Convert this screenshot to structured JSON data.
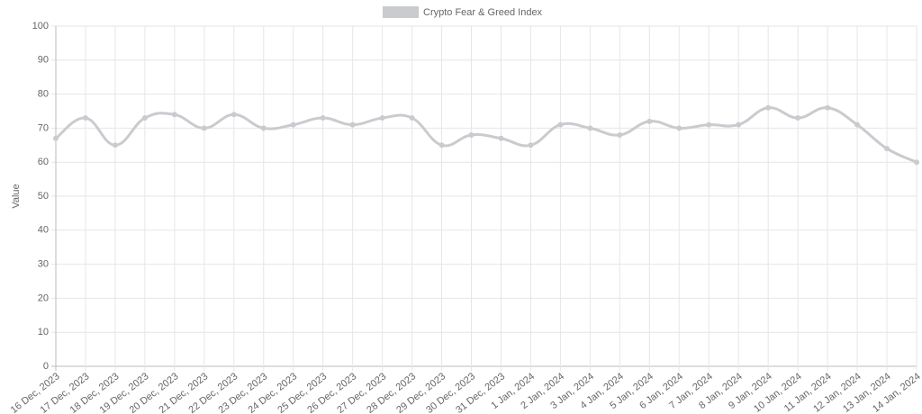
{
  "chart_data": {
    "type": "line",
    "ylabel": "Value",
    "categories": [
      "16 Dec, 2023",
      "17 Dec, 2023",
      "18 Dec, 2023",
      "19 Dec, 2023",
      "20 Dec, 2023",
      "21 Dec, 2023",
      "22 Dec, 2023",
      "23 Dec, 2023",
      "24 Dec, 2023",
      "25 Dec, 2023",
      "26 Dec, 2023",
      "27 Dec, 2023",
      "28 Dec, 2023",
      "29 Dec, 2023",
      "30 Dec, 2023",
      "31 Dec, 2023",
      "1 Jan, 2024",
      "2 Jan, 2024",
      "3 Jan, 2024",
      "4 Jan, 2024",
      "5 Jan, 2024",
      "6 Jan, 2024",
      "7 Jan, 2024",
      "8 Jan, 2024",
      "9 Jan, 2024",
      "10 Jan, 2024",
      "11 Jan, 2024",
      "12 Jan, 2024",
      "13 Jan, 2024",
      "14 Jan, 2024"
    ],
    "series": [
      {
        "name": "Crypto Fear & Greed Index",
        "color": "#c9cbcf",
        "values": [
          67,
          73,
          65,
          73,
          74,
          70,
          74,
          70,
          71,
          73,
          71,
          73,
          73,
          65,
          68,
          67,
          65,
          71,
          70,
          68,
          72,
          70,
          71,
          71,
          76,
          73,
          76,
          71,
          64,
          60
        ]
      }
    ],
    "ylim": [
      0,
      100
    ],
    "yticks": [
      0,
      10,
      20,
      30,
      40,
      50,
      60,
      70,
      80,
      90,
      100
    ],
    "grid": true,
    "legend": "top"
  }
}
